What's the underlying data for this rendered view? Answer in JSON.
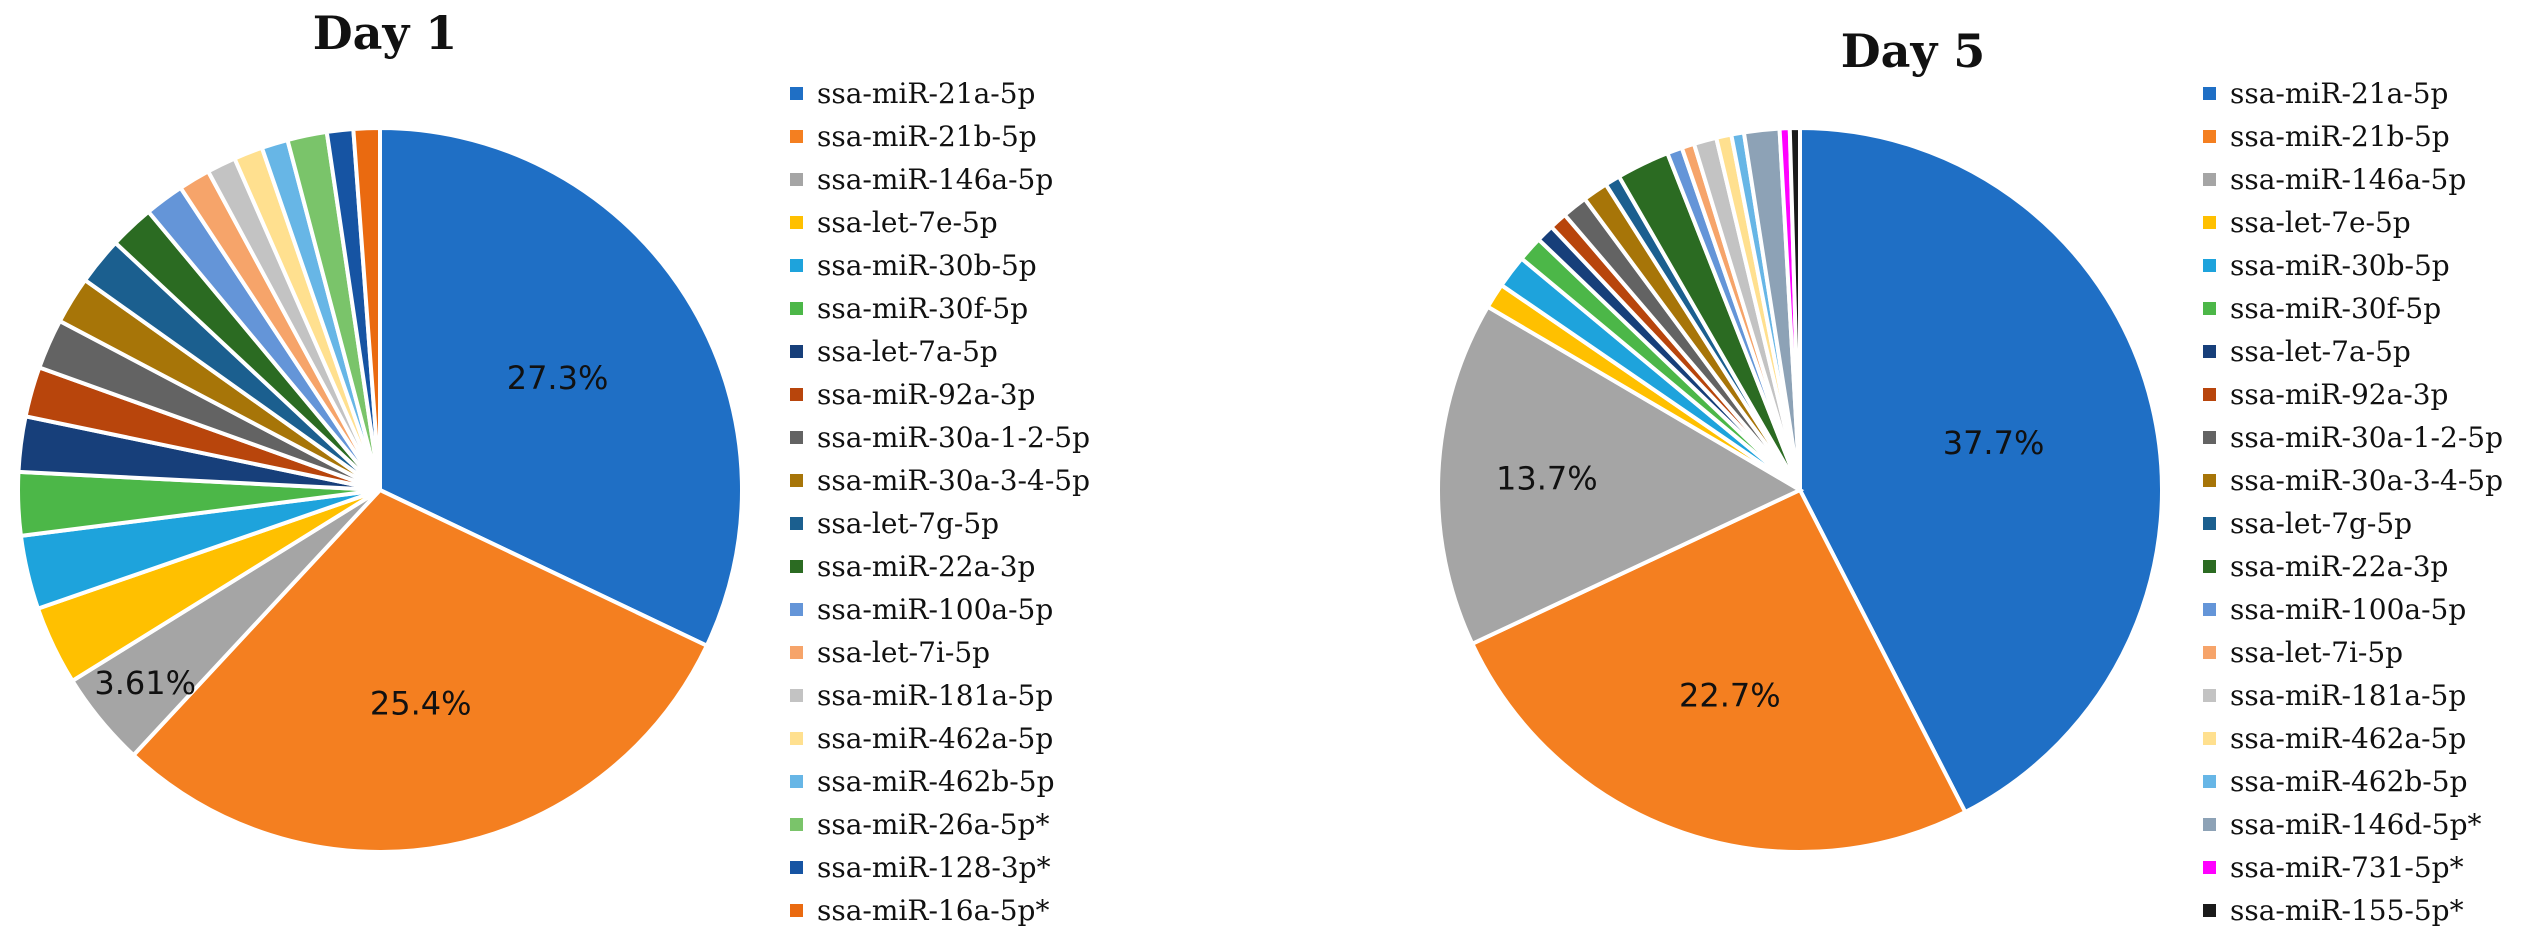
{
  "chart_data": [
    {
      "type": "pie",
      "title": "Day 1",
      "legend_position": "right",
      "slices": [
        {
          "label": "ssa-miR-21a-5p",
          "value": 27.3,
          "color": "#1f6fc5",
          "data_label": "27.3%"
        },
        {
          "label": "ssa-miR-21b-5p",
          "value": 25.4,
          "color": "#f47f20",
          "data_label": "25.4%"
        },
        {
          "label": "ssa-miR-146a-5p",
          "value": 3.61,
          "color": "#a5a5a5",
          "data_label": "3.61%"
        },
        {
          "label": "ssa-let-7e-5p",
          "value": 3.0,
          "color": "#ffc000"
        },
        {
          "label": "ssa-miR-30b-5p",
          "value": 2.8,
          "color": "#1ea3dc"
        },
        {
          "label": "ssa-miR-30f-5p",
          "value": 2.4,
          "color": "#4cb748"
        },
        {
          "label": "ssa-let-7a-5p",
          "value": 2.1,
          "color": "#173f7a"
        },
        {
          "label": "ssa-miR-92a-3p",
          "value": 1.9,
          "color": "#b8450c"
        },
        {
          "label": "ssa-miR-30a-1-2-5p",
          "value": 1.9,
          "color": "#636363"
        },
        {
          "label": "ssa-miR-30a-3-4-5p",
          "value": 1.8,
          "color": "#a77508"
        },
        {
          "label": "ssa-let-7g-5p",
          "value": 1.8,
          "color": "#1b5f8f"
        },
        {
          "label": "ssa-miR-22a-3p",
          "value": 1.7,
          "color": "#2b6b22"
        },
        {
          "label": "ssa-miR-100a-5p",
          "value": 1.5,
          "color": "#6495d8"
        },
        {
          "label": "ssa-let-7i-5p",
          "value": 1.2,
          "color": "#f6a46a"
        },
        {
          "label": "ssa-miR-181a-5p",
          "value": 1.1,
          "color": "#c3c3c3"
        },
        {
          "label": "ssa-miR-462a-5p",
          "value": 1.1,
          "color": "#ffe08f"
        },
        {
          "label": "ssa-miR-462b-5p",
          "value": 1.0,
          "color": "#67b6e6"
        },
        {
          "label": "ssa-miR-26a-5p*",
          "value": 1.5,
          "color": "#7ac46a"
        },
        {
          "label": "ssa-miR-128-3p*",
          "value": 1.0,
          "color": "#1654a3"
        },
        {
          "label": "ssa-miR-16a-5p*",
          "value": 1.0,
          "color": "#ea6a10"
        }
      ]
    },
    {
      "type": "pie",
      "title": "Day 5",
      "legend_position": "right",
      "slices": [
        {
          "label": "ssa-miR-21a-5p",
          "value": 37.7,
          "color": "#1f6fc5",
          "data_label": "37.7%"
        },
        {
          "label": "ssa-miR-21b-5p",
          "value": 22.7,
          "color": "#f47f20",
          "data_label": "22.7%"
        },
        {
          "label": "ssa-miR-146a-5p",
          "value": 13.7,
          "color": "#a5a5a5",
          "data_label": "13.7%"
        },
        {
          "label": "ssa-let-7e-5p",
          "value": 1.0,
          "color": "#ffc000"
        },
        {
          "label": "ssa-miR-30b-5p",
          "value": 1.3,
          "color": "#1ea3dc"
        },
        {
          "label": "ssa-miR-30f-5p",
          "value": 1.0,
          "color": "#4cb748"
        },
        {
          "label": "ssa-let-7a-5p",
          "value": 0.7,
          "color": "#173f7a"
        },
        {
          "label": "ssa-miR-92a-3p",
          "value": 0.7,
          "color": "#b8450c"
        },
        {
          "label": "ssa-miR-30a-1-2-5p",
          "value": 1.0,
          "color": "#636363"
        },
        {
          "label": "ssa-miR-30a-3-4-5p",
          "value": 1.0,
          "color": "#a77508"
        },
        {
          "label": "ssa-let-7g-5p",
          "value": 0.6,
          "color": "#1b5f8f"
        },
        {
          "label": "ssa-miR-22a-3p",
          "value": 2.1,
          "color": "#2b6b22"
        },
        {
          "label": "ssa-miR-100a-5p",
          "value": 0.6,
          "color": "#6495d8"
        },
        {
          "label": "ssa-let-7i-5p",
          "value": 0.5,
          "color": "#f6a46a"
        },
        {
          "label": "ssa-miR-181a-5p",
          "value": 0.9,
          "color": "#c3c3c3"
        },
        {
          "label": "ssa-miR-462a-5p",
          "value": 0.6,
          "color": "#ffe08f"
        },
        {
          "label": "ssa-miR-462b-5p",
          "value": 0.5,
          "color": "#67b6e6"
        },
        {
          "label": "ssa-miR-146d-5p*",
          "value": 1.4,
          "color": "#8da2b6"
        },
        {
          "label": "ssa-miR-731-5p*",
          "value": 0.4,
          "color": "#ff00ff"
        },
        {
          "label": "ssa-miR-155-5p*",
          "value": 0.4,
          "color": "#1a1a1a"
        }
      ]
    }
  ]
}
